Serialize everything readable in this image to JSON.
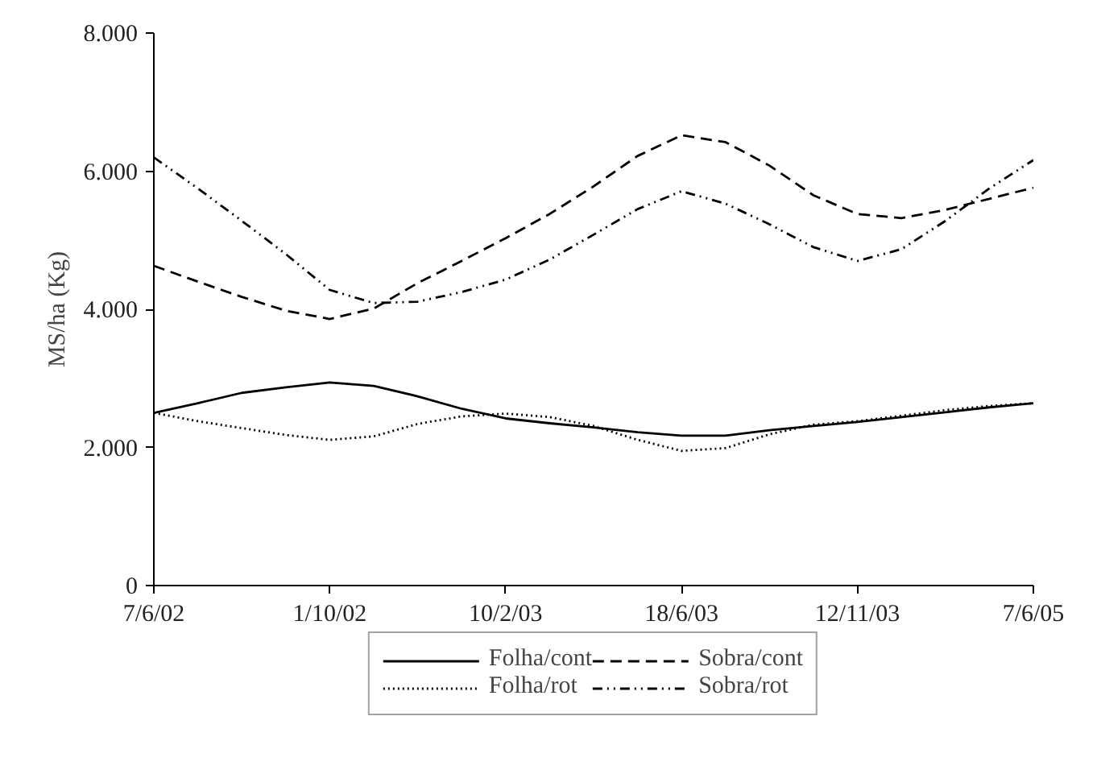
{
  "chart_data": {
    "type": "line",
    "ylabel": "MS/ha (Kg)",
    "categories": [
      "7/6/02",
      null,
      null,
      null,
      "1/10/02",
      null,
      null,
      null,
      "10/2/03",
      null,
      null,
      null,
      "18/6/03",
      null,
      null,
      null,
      "12/11/03",
      null,
      null,
      null,
      "7/6/05"
    ],
    "ylim": [
      0,
      8000
    ],
    "yticks": [
      {
        "value": 0,
        "label": "0"
      },
      {
        "value": 2000,
        "label": "2.000"
      },
      {
        "value": 4000,
        "label": "4.000"
      },
      {
        "value": 6000,
        "label": "6.000"
      },
      {
        "value": 8000,
        "label": "8.000"
      }
    ],
    "grid": false,
    "marker": "none",
    "legend": "bottom",
    "series": [
      {
        "name": "Folha/cont",
        "color": "#000000",
        "line_style": "solid",
        "values": [
          2500,
          2640,
          2790,
          2870,
          2940,
          2890,
          2740,
          2560,
          2420,
          2350,
          2290,
          2220,
          2170,
          2170,
          2250,
          2310,
          2370,
          2440,
          2510,
          2580,
          2640
        ]
      },
      {
        "name": "Folha/rot",
        "color": "#000000",
        "line_style": "dotted",
        "values": [
          2500,
          2380,
          2280,
          2180,
          2110,
          2160,
          2340,
          2450,
          2490,
          2440,
          2310,
          2110,
          1950,
          1990,
          2190,
          2330,
          2380,
          2460,
          2540,
          2600,
          2640
        ]
      },
      {
        "name": "Sobra/cont",
        "color": "#000000",
        "line_style": "dashed",
        "values": [
          4630,
          4400,
          4180,
          3980,
          3860,
          4010,
          4380,
          4700,
          5030,
          5380,
          5780,
          6220,
          6520,
          6420,
          6080,
          5650,
          5380,
          5320,
          5440,
          5600,
          5760
        ]
      },
      {
        "name": "Sobra/rot",
        "color": "#000000",
        "line_style": "dashdot",
        "values": [
          6200,
          5750,
          5280,
          4800,
          4280,
          4090,
          4110,
          4250,
          4430,
          4720,
          5080,
          5450,
          5710,
          5530,
          5230,
          4900,
          4700,
          4870,
          5280,
          5750,
          6160
        ]
      }
    ]
  }
}
